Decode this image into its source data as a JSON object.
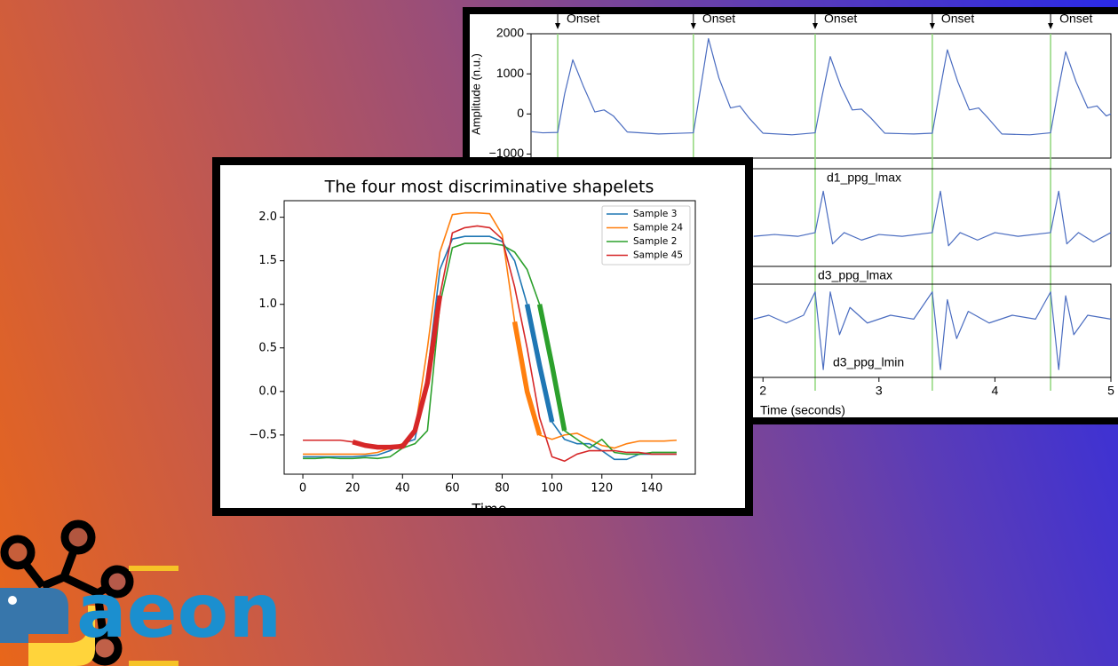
{
  "chart_data": [
    {
      "type": "line",
      "title": "The four most discriminative shapelets",
      "xlabel": "Time",
      "x": [
        0,
        5,
        10,
        15,
        20,
        25,
        30,
        35,
        40,
        45,
        50,
        55,
        60,
        65,
        70,
        75,
        80,
        85,
        90,
        95,
        100,
        105,
        110,
        115,
        120,
        125,
        130,
        135,
        140,
        145,
        150
      ],
      "xlim": [
        -7.5,
        157.5
      ],
      "xticks": [
        0,
        20,
        40,
        60,
        80,
        100,
        120,
        140
      ],
      "ylim": [
        -0.95,
        2.19
      ],
      "yticks": [
        {
          "value": -0.5,
          "label": "−0.5"
        },
        {
          "value": 0,
          "label": "0.0"
        },
        0.5,
        {
          "value": 1,
          "label": "1.0"
        },
        1.5,
        {
          "value": 2,
          "label": "2.0"
        }
      ],
      "legend": "upper right",
      "series": [
        {
          "name": "Sample 3",
          "color": "#1f77b4",
          "shapelet_x": [
            90,
            100
          ],
          "values": [
            -0.75,
            -0.75,
            -0.75,
            -0.75,
            -0.75,
            -0.74,
            -0.73,
            -0.68,
            -0.6,
            -0.55,
            0.2,
            1.4,
            1.75,
            1.78,
            1.78,
            1.78,
            1.72,
            1.5,
            1.0,
            0.3,
            -0.35,
            -0.55,
            -0.6,
            -0.6,
            -0.68,
            -0.78,
            -0.78,
            -0.72,
            -0.72,
            -0.72,
            -0.72
          ]
        },
        {
          "name": "Sample 24",
          "color": "#ff7f0e",
          "shapelet_x": [
            85,
            95
          ],
          "values": [
            -0.72,
            -0.72,
            -0.72,
            -0.72,
            -0.72,
            -0.72,
            -0.7,
            -0.65,
            -0.6,
            -0.45,
            0.5,
            1.6,
            2.03,
            2.05,
            2.05,
            2.04,
            1.8,
            0.8,
            0.0,
            -0.5,
            -0.55,
            -0.5,
            -0.48,
            -0.55,
            -0.62,
            -0.65,
            -0.6,
            -0.57,
            -0.57,
            -0.57,
            -0.56
          ]
        },
        {
          "name": "Sample 2",
          "color": "#2ca02c",
          "shapelet_x": [
            95,
            105
          ],
          "values": [
            -0.77,
            -0.77,
            -0.76,
            -0.77,
            -0.77,
            -0.76,
            -0.77,
            -0.75,
            -0.65,
            -0.6,
            -0.45,
            1.0,
            1.65,
            1.7,
            1.7,
            1.7,
            1.68,
            1.6,
            1.4,
            1.0,
            0.3,
            -0.45,
            -0.55,
            -0.65,
            -0.55,
            -0.7,
            -0.72,
            -0.72,
            -0.7,
            -0.7,
            -0.7
          ]
        },
        {
          "name": "Sample 45",
          "color": "#d62728",
          "shapelet_x": [
            20,
            55
          ],
          "values": [
            -0.56,
            -0.56,
            -0.56,
            -0.56,
            -0.58,
            -0.62,
            -0.64,
            -0.64,
            -0.63,
            -0.45,
            0.1,
            1.1,
            1.82,
            1.88,
            1.9,
            1.88,
            1.75,
            1.2,
            0.5,
            -0.3,
            -0.75,
            -0.8,
            -0.72,
            -0.68,
            -0.68,
            -0.68,
            -0.7,
            -0.7,
            -0.72,
            -0.72,
            -0.72
          ]
        }
      ]
    },
    {
      "type": "line",
      "ylabel": "Amplitude (n.u.)",
      "color": "#4a6cc0",
      "xlim": [
        0,
        5
      ],
      "ylim": [
        -1100,
        2000
      ],
      "yticks": [
        2000,
        1000,
        0,
        {
          "value": -1000,
          "label": "−1000"
        }
      ],
      "annotations": [
        {
          "text": "Onset",
          "x": 0.23
        },
        {
          "text": "Onset",
          "x": 1.4
        },
        {
          "text": "Onset",
          "x": 2.45
        },
        {
          "text": "Onset",
          "x": 3.46
        },
        {
          "text": "Onset",
          "x": 4.48
        }
      ],
      "x": [
        0,
        0.1,
        0.23,
        0.29,
        0.36,
        0.45,
        0.55,
        0.63,
        0.71,
        0.83,
        1.1,
        1.4,
        1.46,
        1.53,
        1.62,
        1.72,
        1.8,
        1.88,
        2.0,
        2.25,
        2.45,
        2.51,
        2.58,
        2.67,
        2.77,
        2.85,
        2.93,
        3.05,
        3.3,
        3.46,
        3.52,
        3.59,
        3.68,
        3.78,
        3.86,
        3.94,
        4.06,
        4.3,
        4.48,
        4.54,
        4.61,
        4.7,
        4.8,
        4.88,
        4.96,
        5.0
      ],
      "values": [
        -440,
        -470,
        -460,
        500,
        1350,
        700,
        50,
        100,
        -50,
        -450,
        -500,
        -470,
        600,
        1880,
        900,
        150,
        200,
        -100,
        -480,
        -520,
        -470,
        450,
        1430,
        700,
        100,
        120,
        -100,
        -480,
        -500,
        -480,
        500,
        1600,
        800,
        100,
        150,
        -100,
        -500,
        -520,
        -470,
        500,
        1550,
        800,
        150,
        200,
        -50,
        0
      ]
    },
    {
      "type": "line",
      "color": "#4a6cc0",
      "xlim": [
        0,
        5
      ],
      "ylim": [
        -1,
        1.6
      ],
      "notes": [
        "d1_ppg_lmax"
      ],
      "x": [
        1.92,
        2.1,
        2.3,
        2.45,
        2.52,
        2.6,
        2.7,
        2.85,
        3.0,
        3.2,
        3.46,
        3.53,
        3.6,
        3.7,
        3.85,
        4.0,
        4.2,
        4.48,
        4.55,
        4.62,
        4.72,
        4.85,
        5.0
      ],
      "values": [
        -0.2,
        -0.15,
        -0.2,
        -0.1,
        1.0,
        -0.4,
        -0.1,
        -0.3,
        -0.15,
        -0.2,
        -0.1,
        1.0,
        -0.45,
        -0.1,
        -0.3,
        -0.1,
        -0.2,
        -0.1,
        1.0,
        -0.4,
        -0.1,
        -0.35,
        -0.1
      ]
    },
    {
      "type": "line",
      "color": "#4a6cc0",
      "xlim": [
        0,
        5
      ],
      "ylim": [
        -1.3,
        1.1
      ],
      "xlabel": "Time (seconds)",
      "xticks": [
        2,
        3,
        4,
        5
      ],
      "notes": [
        "d3_ppg_lmax",
        "d3_ppg_lmin"
      ],
      "x": [
        1.92,
        2.05,
        2.2,
        2.35,
        2.45,
        2.52,
        2.58,
        2.66,
        2.75,
        2.9,
        3.1,
        3.3,
        3.46,
        3.53,
        3.59,
        3.67,
        3.77,
        3.95,
        4.15,
        4.35,
        4.48,
        4.55,
        4.61,
        4.68,
        4.8,
        5.0
      ],
      "values": [
        0.2,
        0.3,
        0.1,
        0.3,
        0.9,
        -1.1,
        0.9,
        -0.2,
        0.5,
        0.1,
        0.3,
        0.2,
        0.9,
        -1.1,
        0.7,
        -0.3,
        0.4,
        0.1,
        0.3,
        0.2,
        0.9,
        -1.1,
        0.8,
        -0.2,
        0.3,
        0.2
      ]
    }
  ],
  "logo": {
    "text": "aeon"
  }
}
